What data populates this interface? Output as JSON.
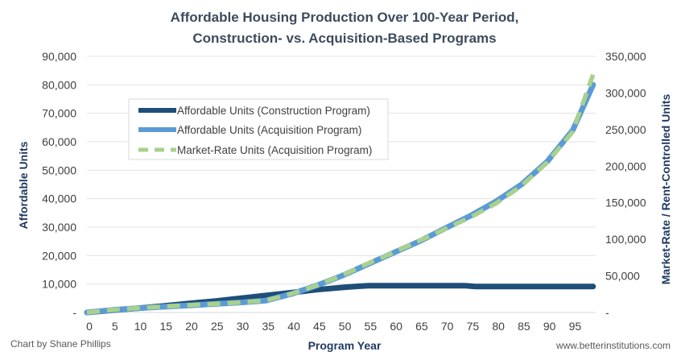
{
  "chart_data": {
    "type": "line",
    "title_lines": [
      "Affordable Housing Production Over 100-Year Period,",
      "Construction-  vs. Acquisition-Based  Programs"
    ],
    "xlabel": "Program Year",
    "ylabel_left": "Affordable Units",
    "ylabel_right": "Market-Rate / Rent-Controlled Units",
    "x_ticks": [
      0,
      5,
      10,
      15,
      20,
      25,
      30,
      35,
      40,
      45,
      50,
      55,
      60,
      65,
      70,
      75,
      80,
      85,
      90,
      95
    ],
    "xlim": [
      0,
      99.5
    ],
    "ylim_left": [
      0,
      90000
    ],
    "ylim_right": [
      0,
      350000
    ],
    "y_left_ticks": [
      "-",
      "10,000",
      "20,000",
      "30,000",
      "40,000",
      "50,000",
      "60,000",
      "70,000",
      "80,000",
      "90,000"
    ],
    "y_right_ticks": [
      "-",
      "50,000",
      "100,000",
      "150,000",
      "200,000",
      "250,000",
      "300,000",
      "350,000"
    ],
    "grid": true,
    "legend_position": "upper-left",
    "series": [
      {
        "name": "Affordable Units (Construction Program)",
        "axis": "left",
        "color": "#1f4e79",
        "dash": "solid",
        "points": [
          [
            0,
            0
          ],
          [
            5,
            800
          ],
          [
            10,
            1500
          ],
          [
            15,
            2300
          ],
          [
            20,
            3200
          ],
          [
            25,
            4000
          ],
          [
            30,
            5000
          ],
          [
            35,
            6000
          ],
          [
            40,
            7000
          ],
          [
            45,
            8000
          ],
          [
            50,
            8800
          ],
          [
            53,
            9200
          ],
          [
            55,
            9400
          ],
          [
            74,
            9400
          ],
          [
            76,
            9100
          ],
          [
            99,
            9100
          ]
        ]
      },
      {
        "name": "Affordable Units (Acquisition Program)",
        "axis": "left",
        "color": "#5b9bd5",
        "dash": "solid",
        "points": [
          [
            0,
            0
          ],
          [
            5,
            900
          ],
          [
            10,
            1500
          ],
          [
            15,
            2000
          ],
          [
            20,
            2500
          ],
          [
            25,
            3000
          ],
          [
            30,
            3500
          ],
          [
            35,
            4200
          ],
          [
            40,
            6500
          ],
          [
            45,
            9500
          ],
          [
            50,
            13000
          ],
          [
            55,
            17000
          ],
          [
            60,
            21000
          ],
          [
            65,
            25000
          ],
          [
            70,
            29500
          ],
          [
            75,
            34000
          ],
          [
            80,
            39000
          ],
          [
            85,
            45000
          ],
          [
            90,
            53000
          ],
          [
            95,
            64000
          ],
          [
            99,
            80000
          ]
        ]
      },
      {
        "name": "Market-Rate Units (Acquisition Program)",
        "axis": "right",
        "color": "#a9d18e",
        "dash": "dashed",
        "points": [
          [
            0,
            0
          ],
          [
            5,
            3700
          ],
          [
            10,
            6000
          ],
          [
            15,
            8000
          ],
          [
            20,
            10000
          ],
          [
            25,
            11800
          ],
          [
            30,
            13800
          ],
          [
            35,
            16400
          ],
          [
            40,
            25500
          ],
          [
            45,
            37000
          ],
          [
            50,
            51000
          ],
          [
            55,
            67000
          ],
          [
            60,
            82000
          ],
          [
            65,
            98000
          ],
          [
            70,
            114000
          ],
          [
            75,
            130000
          ],
          [
            80,
            149000
          ],
          [
            85,
            173000
          ],
          [
            90,
            205000
          ],
          [
            95,
            247000
          ],
          [
            99,
            325000
          ]
        ]
      }
    ]
  },
  "credits": {
    "left": "Chart by Shane Phillips",
    "right": "www.betterinstitutions.com"
  }
}
